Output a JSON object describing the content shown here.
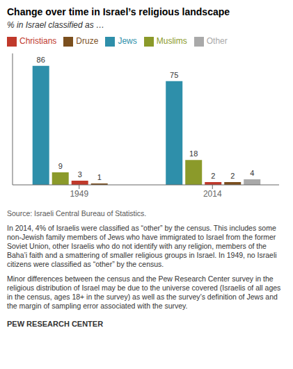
{
  "chart_data": {
    "type": "bar",
    "title": "Change over time in Israel’s religious landscape",
    "subtitle": "% in Israel classified as …",
    "categories": [
      "1949",
      "2014"
    ],
    "series": [
      {
        "name": "Jews",
        "color": "#2E8FAA",
        "values": [
          86,
          75
        ]
      },
      {
        "name": "Muslims",
        "color": "#8B9A2A",
        "values": [
          9,
          18
        ]
      },
      {
        "name": "Christians",
        "color": "#C0392B",
        "values": [
          3,
          2
        ]
      },
      {
        "name": "Druze",
        "color": "#7B4F1E",
        "values": [
          1,
          2
        ]
      },
      {
        "name": "Other",
        "color": "#A9A9A9",
        "values": [
          null,
          4
        ]
      }
    ],
    "ylim": [
      0,
      95
    ],
    "tick_labels": "x",
    "data_labels": true,
    "grid": false,
    "legend": "top",
    "source": "Source: Israeli Central Bureau of Statistics.",
    "notes": [
      "In 2014, 4% of Israelis were classified as “other” by the census. This includes some non-Jewish family members of Jews who have immigrated to Israel from the former Soviet Union, other Israelis who do not identify with any religion, members of the Baha’i faith and a smattering of smaller religious groups in Israel. In 1949, no Israeli citizens were classified as “other” by the census.",
      "Minor differences between the census and the Pew Research Center survey in the religious distribution of Israel may be due to the universe covered (Israelis of all ages in the census, ages 18+  in the survey) as well as the survey’s definition of Jews and the margin of sampling error associated with the survey."
    ],
    "footer": "PEW RESEARCH CENTER"
  }
}
